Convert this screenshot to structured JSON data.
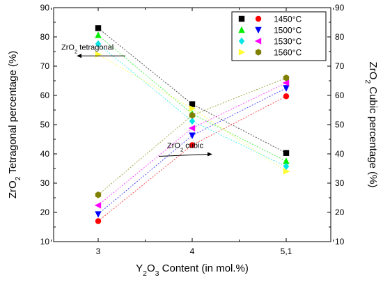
{
  "chart_data": {
    "type": "scatter",
    "x_categories": [
      "3",
      "4",
      "5,1"
    ],
    "xlabel": {
      "pre": "Y",
      "sub1": "2",
      "mid": "O",
      "sub2": "3",
      "post": " Content (in mol.%)"
    },
    "ylabel_left": {
      "pre": "ZrO",
      "sub": "2",
      "post": " Tetragonal percentage (%)"
    },
    "ylabel_right": {
      "pre": "ZrO",
      "sub": "2",
      "post": " Cubic percentage (%)"
    },
    "ylim": [
      10,
      90
    ],
    "yticks": [
      "10",
      "20",
      "30",
      "40",
      "50",
      "60",
      "70",
      "80",
      "90"
    ],
    "grid": false,
    "legend_position": "top-right",
    "series": [
      {
        "name": "1450°C",
        "tetragonal": [
          83,
          57,
          40.3
        ],
        "cubic": [
          17,
          43,
          59.7
        ],
        "colors": {
          "tetragonal": "#000000",
          "cubic": "#ff0000"
        },
        "markers": {
          "tetragonal": "square",
          "cubic": "circle"
        }
      },
      {
        "name": "1500°C",
        "tetragonal": [
          80.6,
          53.7,
          37.5
        ],
        "cubic": [
          19.4,
          46.3,
          62.5
        ],
        "colors": {
          "tetragonal": "#00ee00",
          "cubic": "#0000ff"
        },
        "markers": {
          "tetragonal": "triangle-up",
          "cubic": "triangle-down"
        }
      },
      {
        "name": "1530°C",
        "tetragonal": [
          77.6,
          51.2,
          35.7
        ],
        "cubic": [
          22.4,
          48.8,
          64.3
        ],
        "colors": {
          "tetragonal": "#00e5e5",
          "cubic": "#ff00ff"
        },
        "markers": {
          "tetragonal": "diamond",
          "cubic": "triangle-left"
        }
      },
      {
        "name": "1560°C",
        "tetragonal": [
          74,
          55.5,
          34
        ],
        "cubic": [
          26,
          53.2,
          66
        ],
        "colors": {
          "tetragonal": "#ffff33",
          "cubic": "#808000"
        },
        "markers": {
          "tetragonal": "triangle-right",
          "cubic": "hexagon"
        }
      }
    ],
    "annotations": [
      {
        "pre": "ZrO",
        "sub": "2",
        "post": " tetragonal",
        "arrow": "left",
        "x_data": 1.05,
        "y_data": 73.5
      },
      {
        "pre": "ZrO",
        "sub": "2",
        "post": " cubic",
        "arrow": "right",
        "x_data": 2.38,
        "y_data": 40.6
      }
    ]
  }
}
